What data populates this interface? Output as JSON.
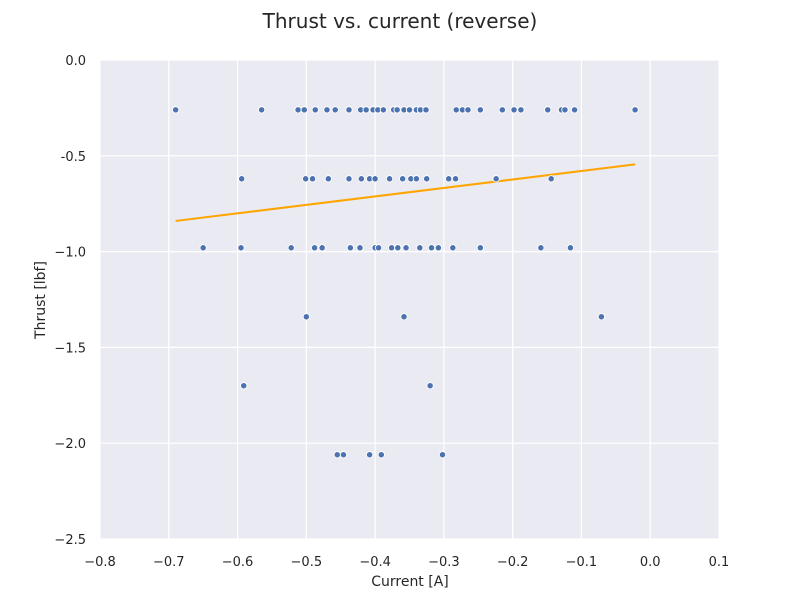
{
  "chart_data": {
    "type": "scatter",
    "title": "Thrust vs. current (reverse)",
    "xlabel": "Current [A]",
    "ylabel": "Thrust [lbf]",
    "xlim": [
      -0.8,
      0.1
    ],
    "ylim": [
      -2.5,
      0.0
    ],
    "xticks": [
      -0.8,
      -0.7,
      -0.6,
      -0.5,
      -0.4,
      -0.3,
      -0.2,
      -0.1,
      0.0,
      0.1
    ],
    "xtick_labels": [
      "−0.8",
      "−0.7",
      "−0.6",
      "−0.5",
      "−0.4",
      "−0.3",
      "−0.2",
      "−0.1",
      "0.0",
      "0.1"
    ],
    "yticks": [
      0.0,
      -0.5,
      -1.0,
      -1.5,
      -2.0,
      -2.5
    ],
    "ytick_labels": [
      "0.0",
      "-0.5",
      "−1.0",
      "−1.5",
      "−2.0",
      "−2.5"
    ],
    "grid": true,
    "background": "#eaeaf2",
    "point_color": "#4c72b0",
    "fit_color": "#ffa500",
    "series": [
      {
        "points": [
          [
            -0.69,
            -0.26
          ],
          [
            -0.565,
            -0.26
          ],
          [
            -0.512,
            -0.26
          ],
          [
            -0.503,
            -0.26
          ],
          [
            -0.487,
            -0.26
          ],
          [
            -0.47,
            -0.26
          ],
          [
            -0.458,
            -0.26
          ],
          [
            -0.438,
            -0.26
          ],
          [
            -0.421,
            -0.26
          ],
          [
            -0.413,
            -0.26
          ],
          [
            -0.403,
            -0.26
          ],
          [
            -0.396,
            -0.26
          ],
          [
            -0.388,
            -0.26
          ],
          [
            -0.373,
            -0.26
          ],
          [
            -0.368,
            -0.26
          ],
          [
            -0.358,
            -0.26
          ],
          [
            -0.35,
            -0.26
          ],
          [
            -0.34,
            -0.26
          ],
          [
            -0.334,
            -0.26
          ],
          [
            -0.326,
            -0.26
          ],
          [
            -0.282,
            -0.26
          ],
          [
            -0.273,
            -0.26
          ],
          [
            -0.265,
            -0.26
          ],
          [
            -0.247,
            -0.26
          ],
          [
            -0.215,
            -0.26
          ],
          [
            -0.198,
            -0.26
          ],
          [
            -0.188,
            -0.26
          ],
          [
            -0.149,
            -0.26
          ],
          [
            -0.129,
            -0.26
          ],
          [
            -0.124,
            -0.26
          ],
          [
            -0.11,
            -0.26
          ],
          [
            -0.022,
            -0.26
          ],
          [
            -0.594,
            -0.62
          ],
          [
            -0.501,
            -0.62
          ],
          [
            -0.491,
            -0.62
          ],
          [
            -0.468,
            -0.62
          ],
          [
            -0.438,
            -0.62
          ],
          [
            -0.42,
            -0.62
          ],
          [
            -0.408,
            -0.62
          ],
          [
            -0.4,
            -0.62
          ],
          [
            -0.379,
            -0.62
          ],
          [
            -0.36,
            -0.62
          ],
          [
            -0.348,
            -0.62
          ],
          [
            -0.34,
            -0.62
          ],
          [
            -0.325,
            -0.62
          ],
          [
            -0.293,
            -0.62
          ],
          [
            -0.283,
            -0.62
          ],
          [
            -0.224,
            -0.62
          ],
          [
            -0.144,
            -0.62
          ],
          [
            -0.65,
            -0.98
          ],
          [
            -0.595,
            -0.98
          ],
          [
            -0.522,
            -0.98
          ],
          [
            -0.488,
            -0.98
          ],
          [
            -0.477,
            -0.98
          ],
          [
            -0.436,
            -0.98
          ],
          [
            -0.422,
            -0.98
          ],
          [
            -0.4,
            -0.98
          ],
          [
            -0.395,
            -0.98
          ],
          [
            -0.376,
            -0.98
          ],
          [
            -0.367,
            -0.98
          ],
          [
            -0.355,
            -0.98
          ],
          [
            -0.335,
            -0.98
          ],
          [
            -0.318,
            -0.98
          ],
          [
            -0.308,
            -0.98
          ],
          [
            -0.287,
            -0.98
          ],
          [
            -0.247,
            -0.98
          ],
          [
            -0.159,
            -0.98
          ],
          [
            -0.116,
            -0.98
          ],
          [
            -0.5,
            -1.34
          ],
          [
            -0.358,
            -1.34
          ],
          [
            -0.071,
            -1.34
          ],
          [
            -0.591,
            -1.7
          ],
          [
            -0.32,
            -1.7
          ],
          [
            -0.455,
            -2.06
          ],
          [
            -0.446,
            -2.06
          ],
          [
            -0.408,
            -2.06
          ],
          [
            -0.391,
            -2.06
          ],
          [
            -0.302,
            -2.06
          ]
        ]
      }
    ],
    "fit_line": {
      "x": [
        -0.69,
        -0.022
      ],
      "y": [
        -0.84,
        -0.545
      ]
    }
  }
}
